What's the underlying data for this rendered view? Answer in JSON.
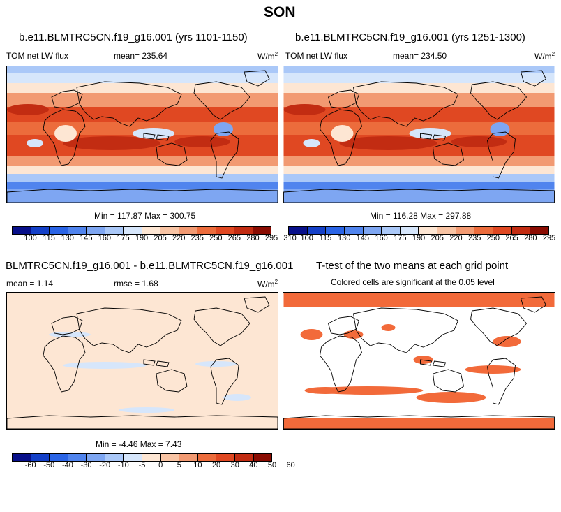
{
  "season": "SON",
  "colors": {
    "ramp13": [
      "#08108a",
      "#1440c8",
      "#2a64e6",
      "#5084ee",
      "#7ea6f2",
      "#aac8f8",
      "#d6e6fb",
      "#fde6d3",
      "#f8c4a4",
      "#f29a72",
      "#ec6c3c",
      "#e04822",
      "#c22c12",
      "#8a0c02"
    ],
    "ramp_diff": [
      "#08108a",
      "#1440c8",
      "#2a64e6",
      "#5084ee",
      "#7ea6f2",
      "#aac8f8",
      "#d6e6fb",
      "#fde6d3",
      "#f8c4a4",
      "#f29a72",
      "#ec6c3c",
      "#e04822",
      "#c22c12",
      "#8a0c02"
    ],
    "signif": "#f26a3a",
    "land_outline": "#000000"
  },
  "panel1": {
    "title": "b.e11.BLMTRC5CN.f19_g16.001 (yrs 1101-1150)",
    "variable": "TOM net LW flux",
    "mean": "mean= 235.64",
    "units": "W/m",
    "units_exp": "2",
    "minmax": "Min = 117.87 Max = 300.75"
  },
  "panel2": {
    "title": "b.e11.BLMTRC5CN.f19_g16.001 (yrs 1251-1300)",
    "variable": "TOM net LW flux",
    "mean": "mean= 234.50",
    "units": "W/m",
    "units_exp": "2",
    "minmax": "Min = 116.28 Max = 297.88"
  },
  "panel3": {
    "title": "BLMTRC5CN.f19_g16.001 - b.e11.BLMTRC5CN.f19_g16.001",
    "mean": "mean =   1.14",
    "rmse": "rmse =   1.68",
    "units": "W/m",
    "units_exp": "2",
    "minmax": "Min =  -4.46 Max =   7.43"
  },
  "panel4": {
    "title": "T-test of the two means at each grid point",
    "subtitle": "Colored cells are significant at the 0.05 level"
  },
  "colorbar_abs_ticks": [
    "100",
    "115",
    "130",
    "145",
    "160",
    "175",
    "190",
    "205",
    "220",
    "235",
    "250",
    "265",
    "280",
    "295",
    "310"
  ],
  "colorbar_diff_ticks": [
    "-60",
    "-50",
    "-40",
    "-30",
    "-20",
    "-10",
    "-5",
    "0",
    "5",
    "10",
    "20",
    "30",
    "40",
    "50",
    "60"
  ],
  "icons": [
    "world-map"
  ]
}
